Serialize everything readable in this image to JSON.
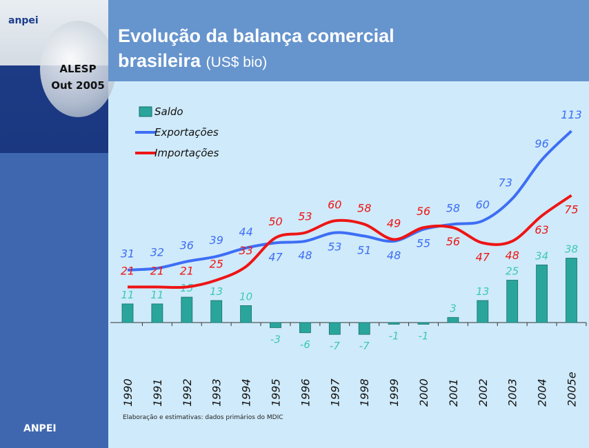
{
  "sidebar": {
    "logo": "anpei",
    "event": "ALESP",
    "date": "Out 2005",
    "footer": "ANPEI"
  },
  "chart_data": {
    "type": "line",
    "title": "Evolução da balança comercial brasileira",
    "unit": "(US$ bio)",
    "categories": [
      "1990",
      "1991",
      "1992",
      "1993",
      "1994",
      "1995",
      "1996",
      "1997",
      "1998",
      "1999",
      "2000",
      "2001",
      "2002",
      "2003",
      "2004",
      "2005e"
    ],
    "series": [
      {
        "name": "Saldo",
        "type": "bar",
        "color": "#2aa59c",
        "label_color": "#3cc7b8",
        "values": [
          11,
          11,
          15,
          13,
          10,
          -3,
          -6,
          -7,
          -7,
          -1,
          -1,
          3,
          13,
          25,
          34,
          38
        ]
      },
      {
        "name": "Exportações",
        "color": "#3d6ef5",
        "values": [
          31,
          32,
          36,
          39,
          44,
          47,
          48,
          53,
          51,
          48,
          55,
          58,
          60,
          73,
          96,
          113
        ]
      },
      {
        "name": "Importações",
        "color": "#ee1515",
        "values": [
          21,
          21,
          21,
          25,
          33,
          50,
          53,
          60,
          58,
          49,
          56,
          56,
          47,
          48,
          63,
          75
        ]
      }
    ],
    "note": "Elaboração e estimativas: dados primários do MDIC"
  }
}
